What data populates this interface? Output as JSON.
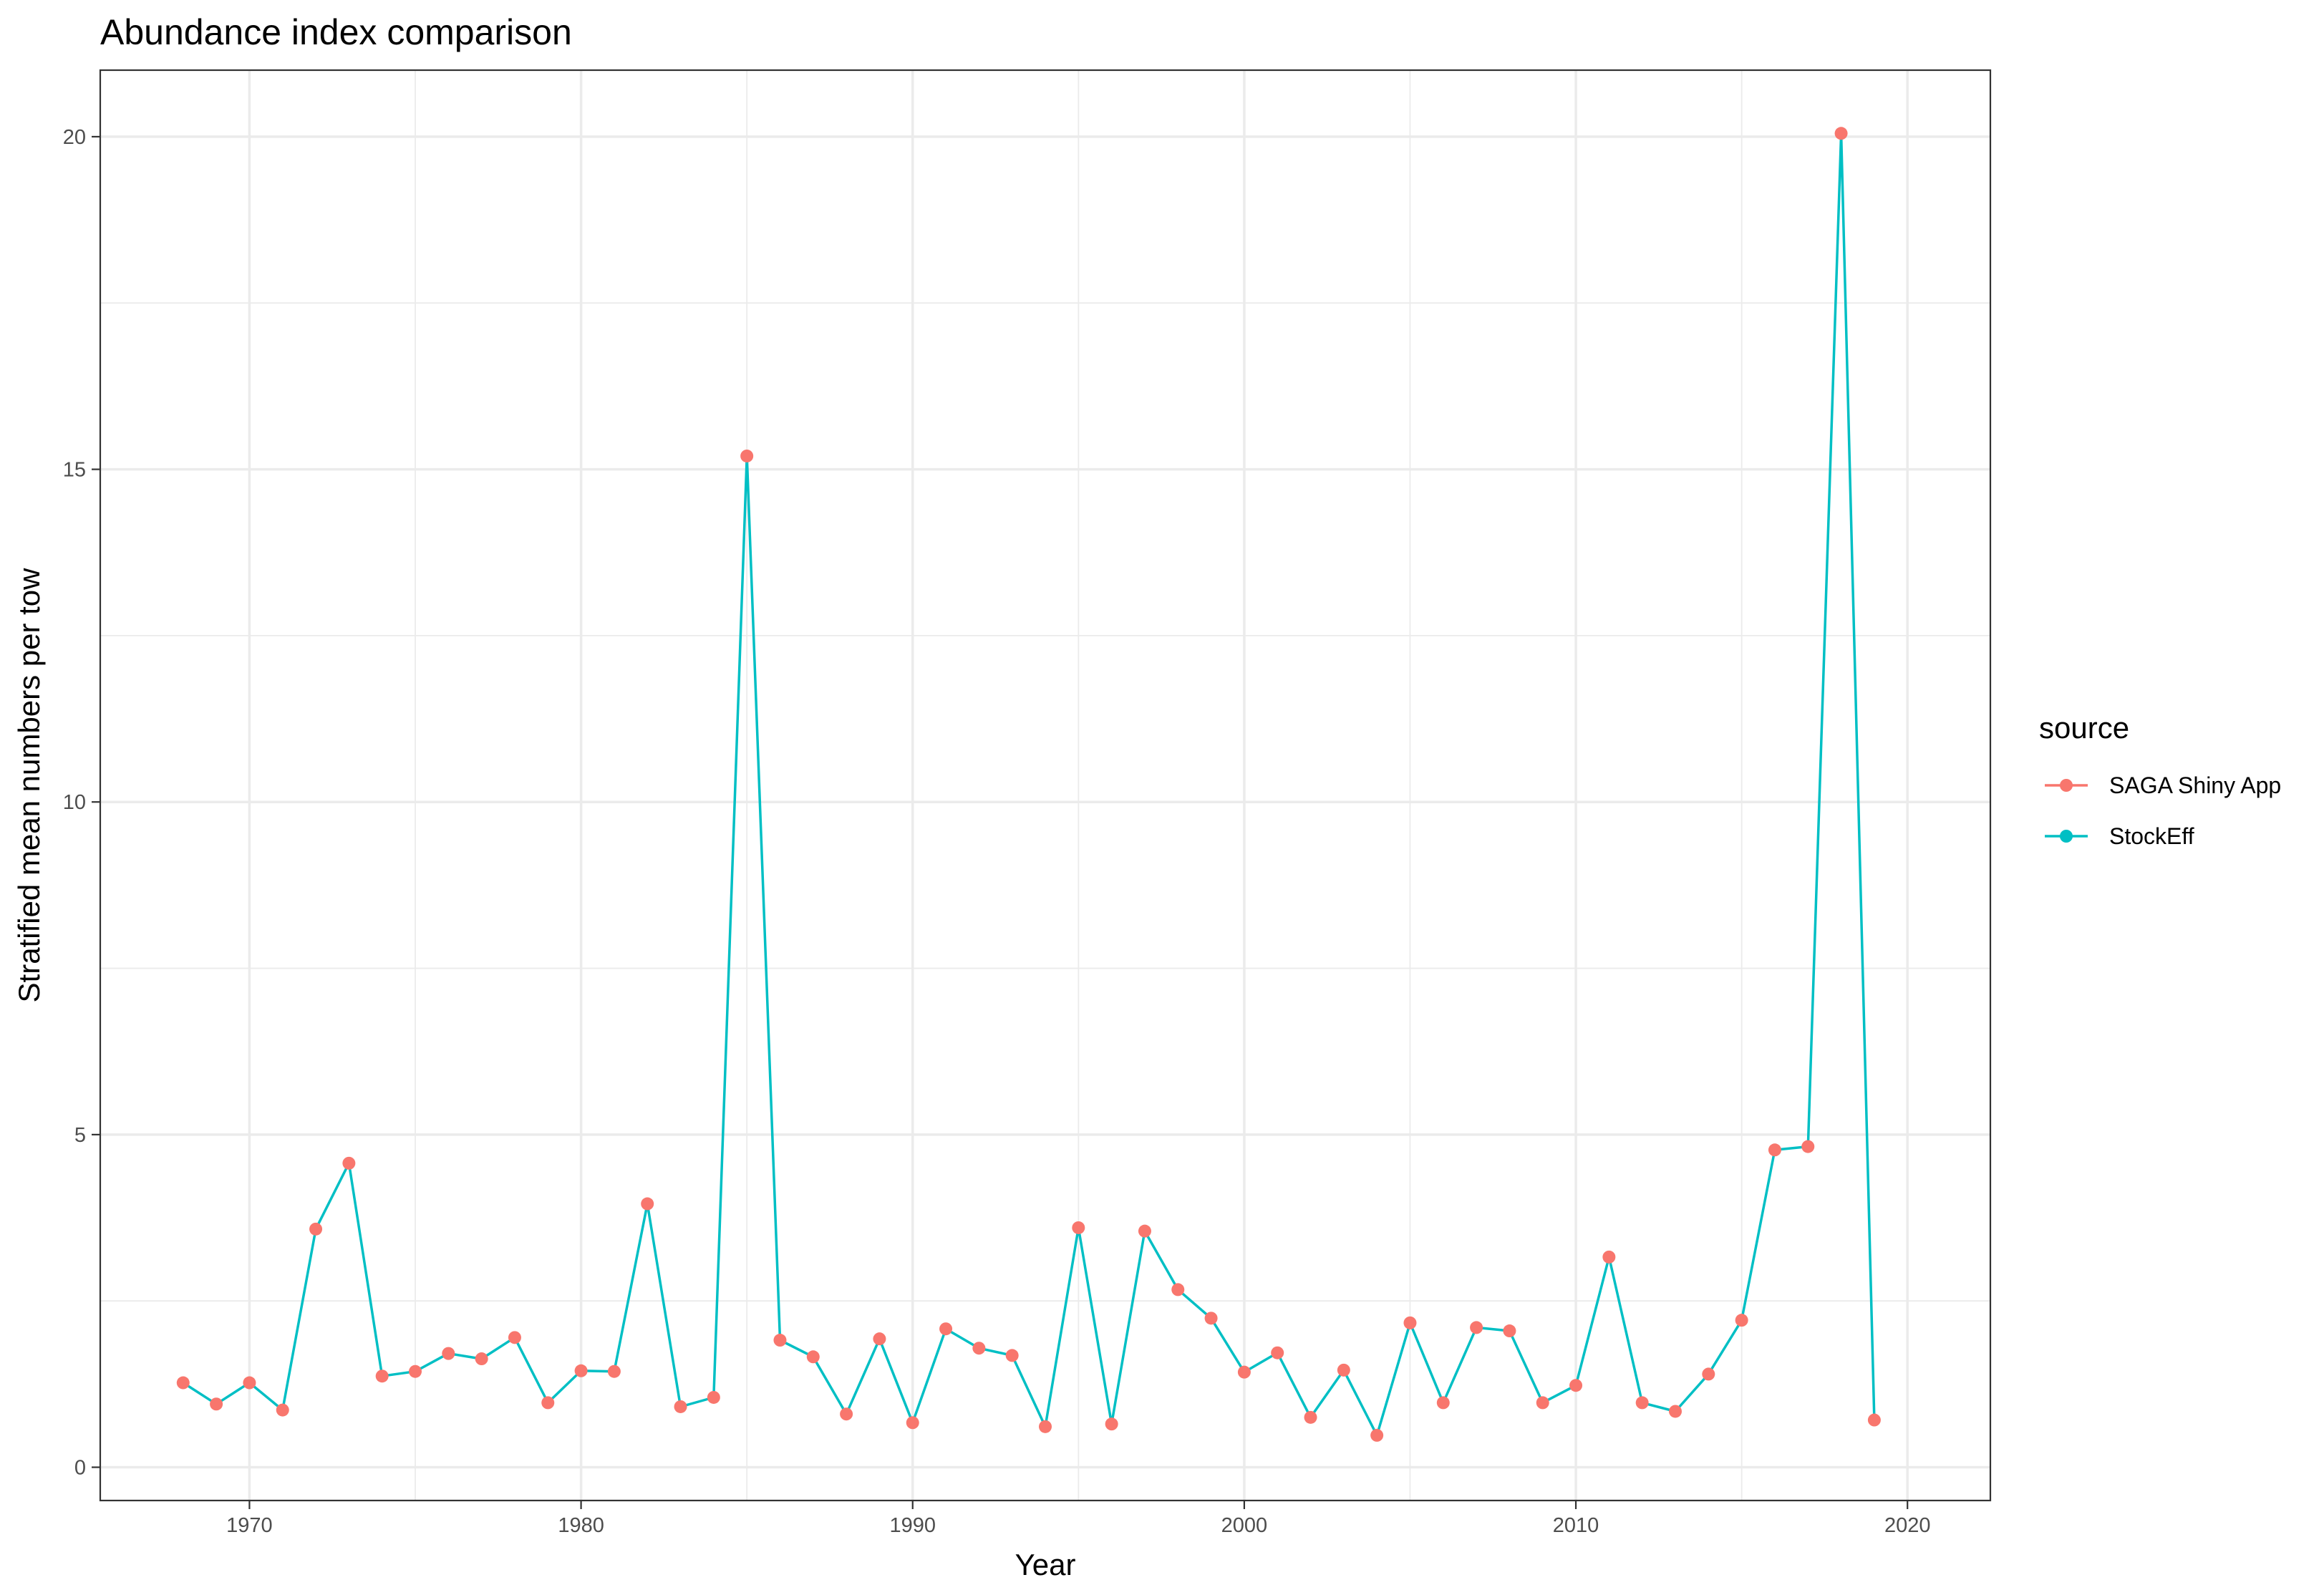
{
  "chart_data": {
    "type": "line",
    "title": "Abundance index comparison",
    "xlabel": "Year",
    "ylabel": "Stratified mean numbers per tow",
    "xlim": [
      1965.5,
      2022.5
    ],
    "ylim": [
      -0.5,
      21.0
    ],
    "x_ticks": [
      1970,
      1980,
      1990,
      2000,
      2010,
      2020
    ],
    "y_ticks": [
      0,
      5,
      10,
      15,
      20
    ],
    "grid": true,
    "legend": {
      "title": "source",
      "placement": "right",
      "entries": [
        "SAGA Shiny App",
        "StockEff"
      ]
    },
    "x": [
      1968,
      1969,
      1970,
      1971,
      1972,
      1973,
      1974,
      1975,
      1976,
      1977,
      1978,
      1979,
      1980,
      1981,
      1982,
      1983,
      1984,
      1985,
      1986,
      1987,
      1988,
      1989,
      1990,
      1991,
      1992,
      1993,
      1994,
      1995,
      1996,
      1997,
      1998,
      1999,
      2000,
      2001,
      2002,
      2003,
      2004,
      2005,
      2006,
      2007,
      2008,
      2009,
      2010,
      2011,
      2012,
      2013,
      2014,
      2015,
      2016,
      2017,
      2018,
      2019
    ],
    "series": [
      {
        "name": "SAGA Shiny App",
        "color": "#F8766D",
        "marks": "points",
        "values": [
          1.27,
          0.95,
          1.27,
          0.86,
          3.58,
          4.57,
          1.37,
          1.44,
          1.71,
          1.63,
          1.95,
          0.97,
          1.45,
          1.44,
          3.96,
          0.91,
          1.05,
          15.2,
          1.91,
          1.66,
          0.8,
          1.93,
          0.67,
          2.08,
          1.79,
          1.68,
          0.61,
          3.6,
          0.65,
          3.55,
          2.67,
          2.24,
          1.43,
          1.72,
          0.75,
          1.46,
          0.48,
          2.17,
          0.97,
          2.1,
          2.05,
          0.97,
          1.23,
          3.16,
          0.97,
          0.84,
          1.4,
          2.21,
          4.77,
          4.82,
          20.05,
          0.71
        ]
      },
      {
        "name": "StockEff",
        "color": "#00BFC4",
        "marks": "line",
        "values": [
          1.27,
          0.95,
          1.27,
          0.86,
          3.58,
          4.57,
          1.37,
          1.44,
          1.71,
          1.63,
          1.95,
          0.97,
          1.45,
          1.44,
          3.96,
          0.91,
          1.05,
          15.2,
          1.91,
          1.66,
          0.8,
          1.93,
          0.67,
          2.08,
          1.79,
          1.68,
          0.61,
          3.6,
          0.65,
          3.55,
          2.67,
          2.24,
          1.43,
          1.72,
          0.75,
          1.46,
          0.48,
          2.17,
          0.97,
          2.1,
          2.05,
          0.97,
          1.23,
          3.16,
          0.97,
          0.84,
          1.4,
          2.21,
          4.77,
          4.82,
          20.05,
          0.71
        ]
      }
    ]
  }
}
